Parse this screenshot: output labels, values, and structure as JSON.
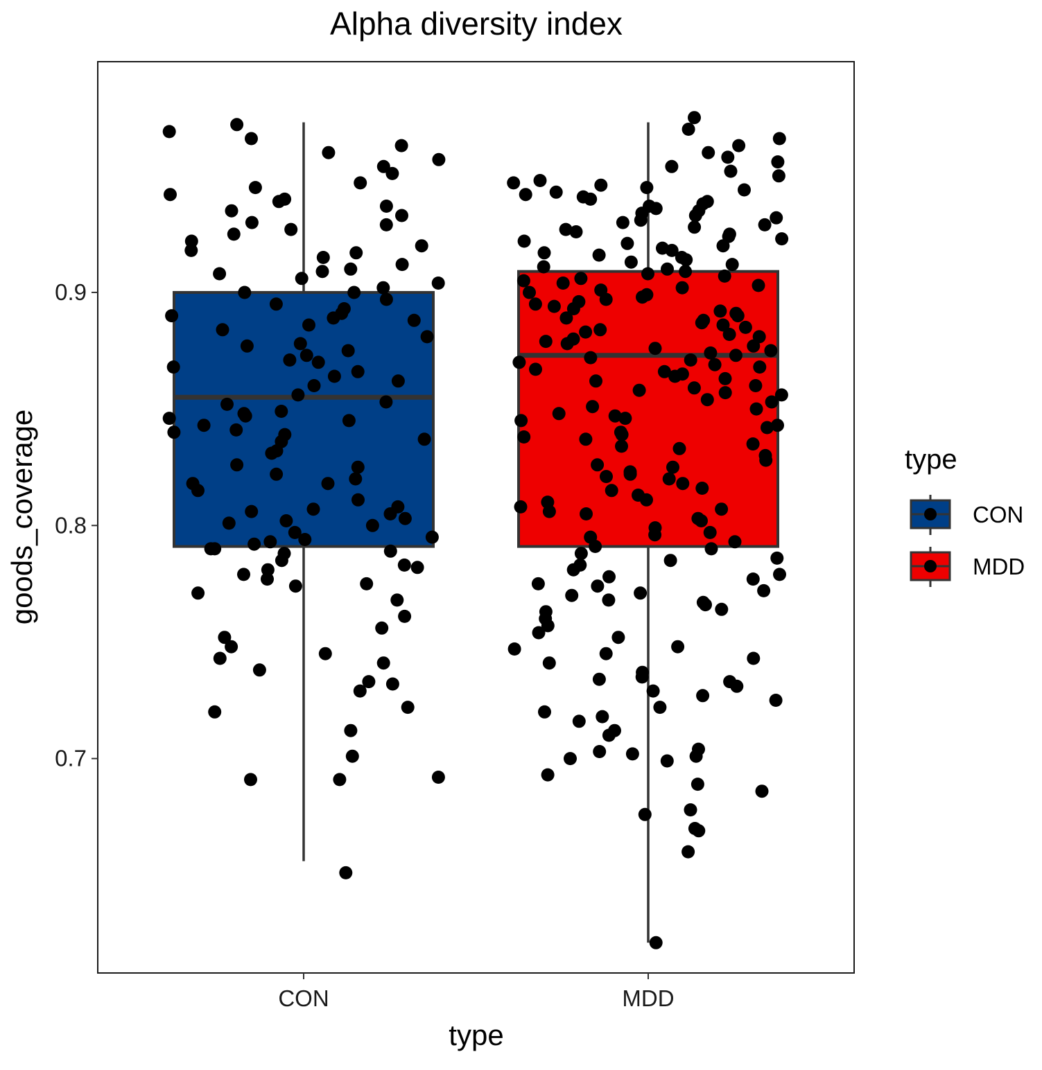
{
  "chart_data": {
    "type": "box",
    "title": "Alpha diversity index",
    "xlabel": "type",
    "ylabel": "goods_coverage",
    "categories": [
      "CON",
      "MDD"
    ],
    "y_ticks": [
      0.7,
      0.8,
      0.9
    ],
    "ylim": [
      0.608,
      0.999
    ],
    "grid": false,
    "legend": {
      "title": "type",
      "position": "right",
      "entries": [
        {
          "label": "CON",
          "color": "#003F87"
        },
        {
          "label": "MDD",
          "color": "#EE0000"
        }
      ]
    },
    "boxes": [
      {
        "category": "CON",
        "color": "#003F87",
        "lower_whisker": 0.656,
        "q1": 0.791,
        "median": 0.855,
        "q3": 0.9,
        "upper_whisker": 0.973
      },
      {
        "category": "MDD",
        "color": "#EE0000",
        "lower_whisker": 0.621,
        "q1": 0.791,
        "median": 0.873,
        "q3": 0.909,
        "upper_whisker": 0.973
      }
    ],
    "points": {
      "CON": [
        0.651,
        0.691,
        0.691,
        0.692,
        0.701,
        0.712,
        0.72,
        0.722,
        0.729,
        0.732,
        0.733,
        0.738,
        0.741,
        0.743,
        0.745,
        0.748,
        0.752,
        0.756,
        0.761,
        0.768,
        0.771,
        0.774,
        0.775,
        0.777,
        0.779,
        0.781,
        0.782,
        0.783,
        0.785,
        0.788,
        0.789,
        0.79,
        0.79,
        0.792,
        0.793,
        0.794,
        0.795,
        0.797,
        0.8,
        0.801,
        0.802,
        0.803,
        0.805,
        0.806,
        0.807,
        0.808,
        0.811,
        0.815,
        0.818,
        0.818,
        0.82,
        0.822,
        0.825,
        0.826,
        0.831,
        0.832,
        0.836,
        0.837,
        0.839,
        0.84,
        0.841,
        0.843,
        0.845,
        0.846,
        0.847,
        0.848,
        0.849,
        0.852,
        0.853,
        0.856,
        0.86,
        0.862,
        0.864,
        0.866,
        0.868,
        0.87,
        0.871,
        0.873,
        0.875,
        0.877,
        0.878,
        0.881,
        0.884,
        0.886,
        0.888,
        0.889,
        0.89,
        0.891,
        0.893,
        0.895,
        0.897,
        0.9,
        0.9,
        0.902,
        0.904,
        0.906,
        0.908,
        0.909,
        0.91,
        0.912,
        0.915,
        0.917,
        0.918,
        0.92,
        0.922,
        0.925,
        0.927,
        0.929,
        0.93,
        0.933,
        0.935,
        0.937,
        0.939,
        0.94,
        0.942,
        0.945,
        0.947,
        0.951,
        0.954,
        0.957,
        0.96,
        0.963,
        0.966,
        0.969,
        0.972
      ],
      "MDD": [
        0.621,
        0.66,
        0.669,
        0.67,
        0.676,
        0.678,
        0.686,
        0.689,
        0.693,
        0.699,
        0.7,
        0.701,
        0.702,
        0.703,
        0.704,
        0.71,
        0.712,
        0.716,
        0.718,
        0.72,
        0.722,
        0.725,
        0.727,
        0.729,
        0.731,
        0.733,
        0.734,
        0.735,
        0.737,
        0.741,
        0.743,
        0.745,
        0.747,
        0.748,
        0.752,
        0.754,
        0.757,
        0.76,
        0.763,
        0.764,
        0.766,
        0.767,
        0.768,
        0.77,
        0.771,
        0.772,
        0.774,
        0.775,
        0.777,
        0.778,
        0.779,
        0.781,
        0.783,
        0.785,
        0.786,
        0.788,
        0.79,
        0.791,
        0.793,
        0.795,
        0.796,
        0.797,
        0.799,
        0.802,
        0.803,
        0.805,
        0.806,
        0.807,
        0.808,
        0.81,
        0.811,
        0.813,
        0.815,
        0.816,
        0.818,
        0.82,
        0.821,
        0.822,
        0.823,
        0.825,
        0.826,
        0.828,
        0.83,
        0.833,
        0.834,
        0.835,
        0.837,
        0.838,
        0.839,
        0.84,
        0.842,
        0.843,
        0.845,
        0.846,
        0.847,
        0.848,
        0.85,
        0.851,
        0.853,
        0.854,
        0.856,
        0.857,
        0.858,
        0.859,
        0.86,
        0.862,
        0.863,
        0.864,
        0.865,
        0.866,
        0.867,
        0.868,
        0.869,
        0.87,
        0.871,
        0.872,
        0.873,
        0.874,
        0.875,
        0.876,
        0.877,
        0.878,
        0.879,
        0.88,
        0.881,
        0.882,
        0.883,
        0.884,
        0.885,
        0.886,
        0.887,
        0.888,
        0.889,
        0.89,
        0.891,
        0.892,
        0.893,
        0.894,
        0.895,
        0.896,
        0.897,
        0.898,
        0.899,
        0.9,
        0.901,
        0.902,
        0.903,
        0.904,
        0.905,
        0.906,
        0.907,
        0.908,
        0.909,
        0.91,
        0.911,
        0.912,
        0.913,
        0.914,
        0.915,
        0.916,
        0.917,
        0.918,
        0.919,
        0.92,
        0.921,
        0.922,
        0.923,
        0.924,
        0.925,
        0.926,
        0.927,
        0.928,
        0.929,
        0.93,
        0.931,
        0.932,
        0.933,
        0.934,
        0.935,
        0.936,
        0.937,
        0.938,
        0.939,
        0.94,
        0.941,
        0.942,
        0.943,
        0.944,
        0.945,
        0.946,
        0.947,
        0.948,
        0.95,
        0.952,
        0.954,
        0.956,
        0.958,
        0.96,
        0.963,
        0.966,
        0.97,
        0.975
      ]
    }
  }
}
